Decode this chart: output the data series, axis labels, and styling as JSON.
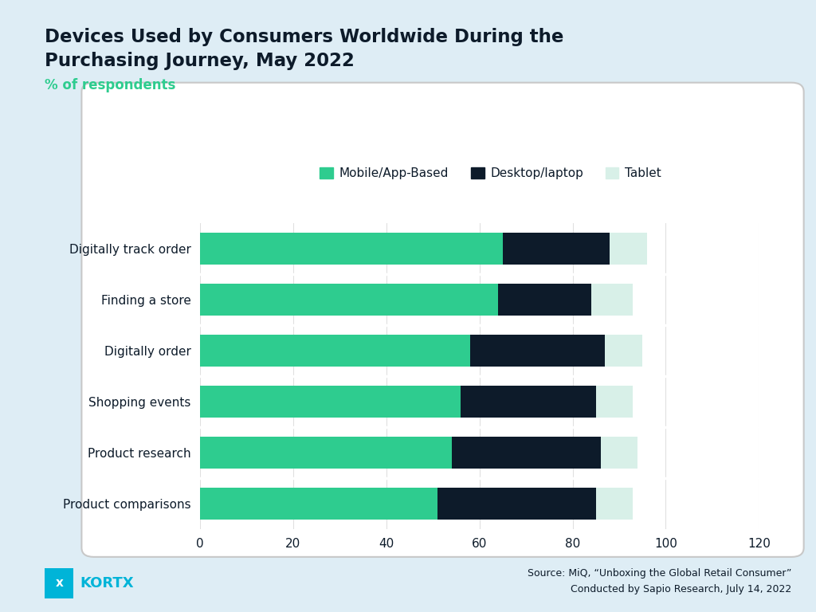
{
  "title_line1": "Devices Used by Consumers Worldwide During the",
  "title_line2": "Purchasing Journey, May 2022",
  "subtitle": "% of respondents",
  "categories": [
    "Digitally track order",
    "Finding a store",
    "Digitally order",
    "Shopping events",
    "Product research",
    "Product comparisons"
  ],
  "mobile": [
    65,
    64,
    58,
    56,
    54,
    51
  ],
  "desktop": [
    23,
    20,
    29,
    29,
    32,
    34
  ],
  "tablet": [
    8,
    9,
    8,
    8,
    8,
    8
  ],
  "colors": {
    "mobile": "#2ecc8f",
    "desktop": "#0d1b2a",
    "tablet": "#d8f0e8"
  },
  "legend_labels": [
    "Mobile/App-Based",
    "Desktop/laptop",
    "Tablet"
  ],
  "xlim": [
    0,
    120
  ],
  "xticks": [
    0,
    20,
    40,
    60,
    80,
    100,
    120
  ],
  "background_outer": "#deedf5",
  "background_chart": "#ffffff",
  "title_color": "#0d1b2a",
  "subtitle_color": "#2ecc8f",
  "source_text": "Source: MiQ, “Unboxing the Global Retail Consumer”\nConducted by Sapio Research, July 14, 2022",
  "kortx_color": "#00b4d8"
}
